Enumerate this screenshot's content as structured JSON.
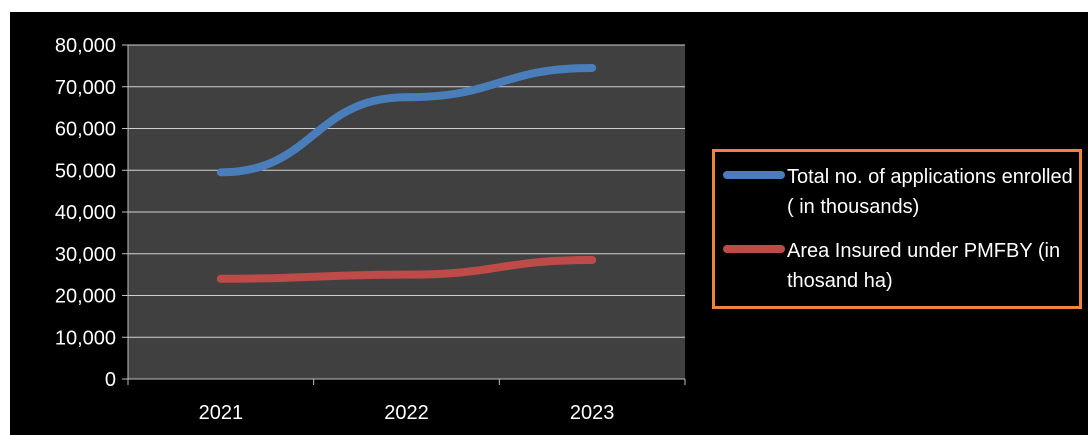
{
  "chart_data": {
    "type": "line",
    "title": "",
    "xlabel": "",
    "ylabel": "",
    "categories": [
      "2021",
      "2022",
      "2023"
    ],
    "series": [
      {
        "name": "Total no. of applications enrolled ( in thousands)",
        "values": [
          49500,
          67500,
          74500
        ],
        "color": "#4a7ebb"
      },
      {
        "name": "Area Insured under PMFBY (in thosand ha)",
        "values": [
          24000,
          25000,
          28500
        ],
        "color": "#be4b48"
      }
    ],
    "ylim": [
      0,
      80000
    ],
    "yticks": [
      "0",
      "10,000",
      "20,000",
      "30,000",
      "40,000",
      "50,000",
      "60,000",
      "70,000",
      "80,000"
    ],
    "grid": true,
    "legend_position": "right",
    "colors": {
      "background": "#000000",
      "plot_area": "#404040",
      "gridline": "#cfcfcf",
      "legend_border": "#f0843a",
      "text": "#ffffff"
    }
  }
}
